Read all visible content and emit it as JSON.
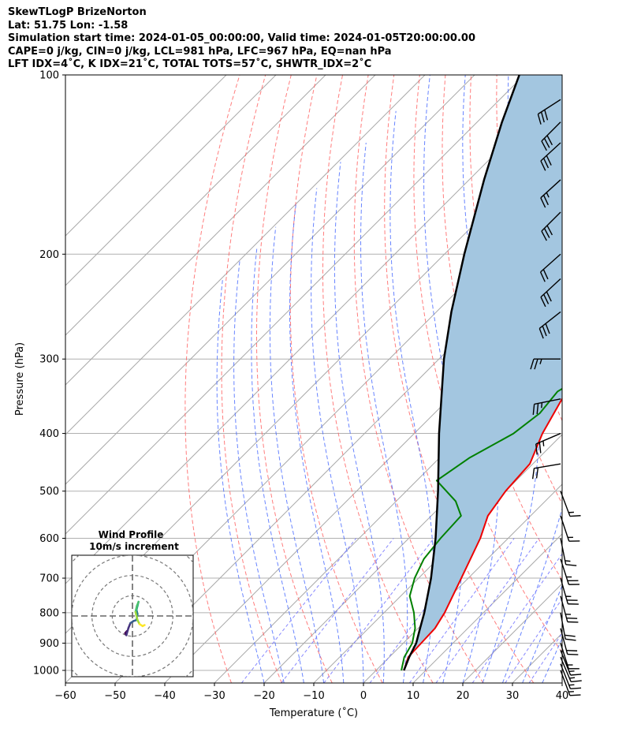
{
  "header": {
    "title": "SkewTLogP BrizeNorton",
    "location": "Lat: 51.75   Lon: -1.58",
    "times": "Simulation start time: 2024-01-05_00:00:00, Valid time: 2024-01-05T20:00:00.00",
    "indices1": "CAPE=0 j/kg, CIN=0 j/kg, LCL=981 hPa, LFC=967 hPa, EQ=nan hPa",
    "indices2": "LFT IDX=4˚C, K IDX=21˚C, TOTAL TOTS=57˚C, SHWTR_IDX=2˚C"
  },
  "chart_data": {
    "type": "line",
    "subtype": "skew-t log-p",
    "xlabel": "Temperature (˚C)",
    "ylabel": "Pressure (hPa)",
    "xlim": [
      -60,
      40
    ],
    "ylim": [
      1050,
      100
    ],
    "y_scale": "log",
    "x_ticks": [
      "−60",
      "−50",
      "−40",
      "−30",
      "−20",
      "−10",
      "0",
      "10",
      "20",
      "30",
      "40"
    ],
    "y_ticks": [
      "1000",
      "900",
      "800",
      "700",
      "600",
      "500",
      "400",
      "300",
      "200",
      "100"
    ],
    "grid": true,
    "colors": {
      "temperature": "#ee0000",
      "dewpoint": "#008000",
      "parcel": "#000000",
      "cape_fill": "#a3c6e0",
      "dry_adiabats": "#ff6666",
      "moist_adiabats": "#4466ff",
      "mixing_ratio": "#7a7aff",
      "isotherms": "#aaaaaa"
    },
    "series": [
      {
        "key": "temperature",
        "points": [
          [
            1000,
            5.6
          ],
          [
            950,
            3.8
          ],
          [
            900,
            3.6
          ],
          [
            850,
            3.4
          ],
          [
            800,
            2.2
          ],
          [
            700,
            -1.4
          ],
          [
            600,
            -5.6
          ],
          [
            550,
            -8.6
          ],
          [
            500,
            -10.0
          ],
          [
            450,
            -10.6
          ],
          [
            400,
            -14.2
          ],
          [
            350,
            -17.2
          ],
          [
            330,
            -17.4
          ],
          [
            300,
            -15.8
          ],
          [
            270,
            -12.8
          ],
          [
            250,
            -9.6
          ],
          [
            200,
            -3.5
          ],
          [
            170,
            0.2
          ],
          [
            150,
            3.2
          ],
          [
            120,
            9.8
          ],
          [
            100,
            16.2
          ]
        ]
      },
      {
        "key": "dewpoint",
        "points": [
          [
            1000,
            5.1
          ],
          [
            950,
            3.0
          ],
          [
            900,
            1.8
          ],
          [
            850,
            -0.6
          ],
          [
            800,
            -4.0
          ],
          [
            750,
            -8.2
          ],
          [
            700,
            -10.8
          ],
          [
            650,
            -12.8
          ],
          [
            600,
            -13.6
          ],
          [
            550,
            -14.0
          ],
          [
            520,
            -18.0
          ],
          [
            480,
            -26.0
          ],
          [
            440,
            -24.0
          ],
          [
            400,
            -20.0
          ],
          [
            370,
            -18.8
          ],
          [
            340,
            -19.6
          ],
          [
            320,
            -17.4
          ],
          [
            290,
            -18.8
          ],
          [
            270,
            -23.6
          ],
          [
            250,
            -30.0
          ],
          [
            240,
            -28.0
          ],
          [
            220,
            -25.2
          ],
          [
            200,
            -23.5
          ],
          [
            180,
            -23.0
          ],
          [
            170,
            -21.8
          ],
          [
            150,
            -18.2
          ],
          [
            120,
            -13.0
          ],
          [
            100,
            -8.5
          ]
        ]
      },
      {
        "key": "parcel",
        "points": [
          [
            1000,
            5.6
          ],
          [
            950,
            4.0
          ],
          [
            900,
            2.6
          ],
          [
            850,
            0.4
          ],
          [
            800,
            -1.9
          ],
          [
            700,
            -7.5
          ],
          [
            600,
            -14.6
          ],
          [
            500,
            -23.6
          ],
          [
            400,
            -35.0
          ],
          [
            300,
            -49.0
          ],
          [
            250,
            -57.0
          ],
          [
            200,
            -66.0
          ],
          [
            150,
            -77.0
          ],
          [
            120,
            -85.0
          ],
          [
            100,
            -91.0
          ]
        ]
      }
    ],
    "wind_barbs": [
      {
        "p": 1000,
        "u": -2.8,
        "v": 7.5
      },
      {
        "p": 975,
        "u": -3.2,
        "v": 8.1
      },
      {
        "p": 950,
        "u": -3.6,
        "v": 8.5
      },
      {
        "p": 925,
        "u": -3.6,
        "v": 9.0
      },
      {
        "p": 900,
        "u": -3.0,
        "v": 9.5
      },
      {
        "p": 850,
        "u": -2.8,
        "v": 10.5
      },
      {
        "p": 800,
        "u": -2.0,
        "v": 11.0
      },
      {
        "p": 750,
        "u": -3.5,
        "v": 13.0
      },
      {
        "p": 700,
        "u": -4.0,
        "v": 14.0
      },
      {
        "p": 650,
        "u": -4.5,
        "v": 14.0
      },
      {
        "p": 600,
        "u": -2.0,
        "v": 10.0
      },
      {
        "p": 550,
        "u": -3.0,
        "v": 9.0
      },
      {
        "p": 500,
        "u": -3.0,
        "v": 8.0
      },
      {
        "p": 450,
        "u": 12.0,
        "v": 2.0
      },
      {
        "p": 400,
        "u": 14.0,
        "v": 6.0
      },
      {
        "p": 350,
        "u": 15.0,
        "v": 3.0
      },
      {
        "p": 300,
        "u": 15.0,
        "v": 0.0
      },
      {
        "p": 250,
        "u": 14.0,
        "v": 11.0
      },
      {
        "p": 220,
        "u": 13.0,
        "v": 12.0
      },
      {
        "p": 200,
        "u": 9.0,
        "v": 8.0
      },
      {
        "p": 170,
        "u": 11.0,
        "v": 11.0
      },
      {
        "p": 150,
        "u": 11.0,
        "v": 10.0
      },
      {
        "p": 130,
        "u": 12.0,
        "v": 11.0
      },
      {
        "p": 120,
        "u": 12.0,
        "v": 12.0
      },
      {
        "p": 110,
        "u": 14.0,
        "v": 9.0
      }
    ],
    "hodograph": {
      "title": "Wind Profile",
      "subtitle": "10m/s increment",
      "ring_step": 10,
      "range": 30,
      "points": [
        [
          -2.8,
          -7.5
        ],
        [
          -3.6,
          -8.5
        ],
        [
          -3.0,
          -9.5
        ],
        [
          -2.0,
          -6.0
        ],
        [
          -1.0,
          -3.5
        ],
        [
          0.5,
          -2.5
        ],
        [
          2.0,
          -2.0
        ],
        [
          2.5,
          1.0
        ],
        [
          2.0,
          3.0
        ],
        [
          2.5,
          5.0
        ],
        [
          3.0,
          7.0
        ],
        [
          2.2,
          5.0
        ],
        [
          1.5,
          2.0
        ],
        [
          2.5,
          -2.0
        ],
        [
          3.5,
          -4.0
        ],
        [
          5.0,
          -5.0
        ],
        [
          6.0,
          -4.5
        ]
      ]
    }
  }
}
